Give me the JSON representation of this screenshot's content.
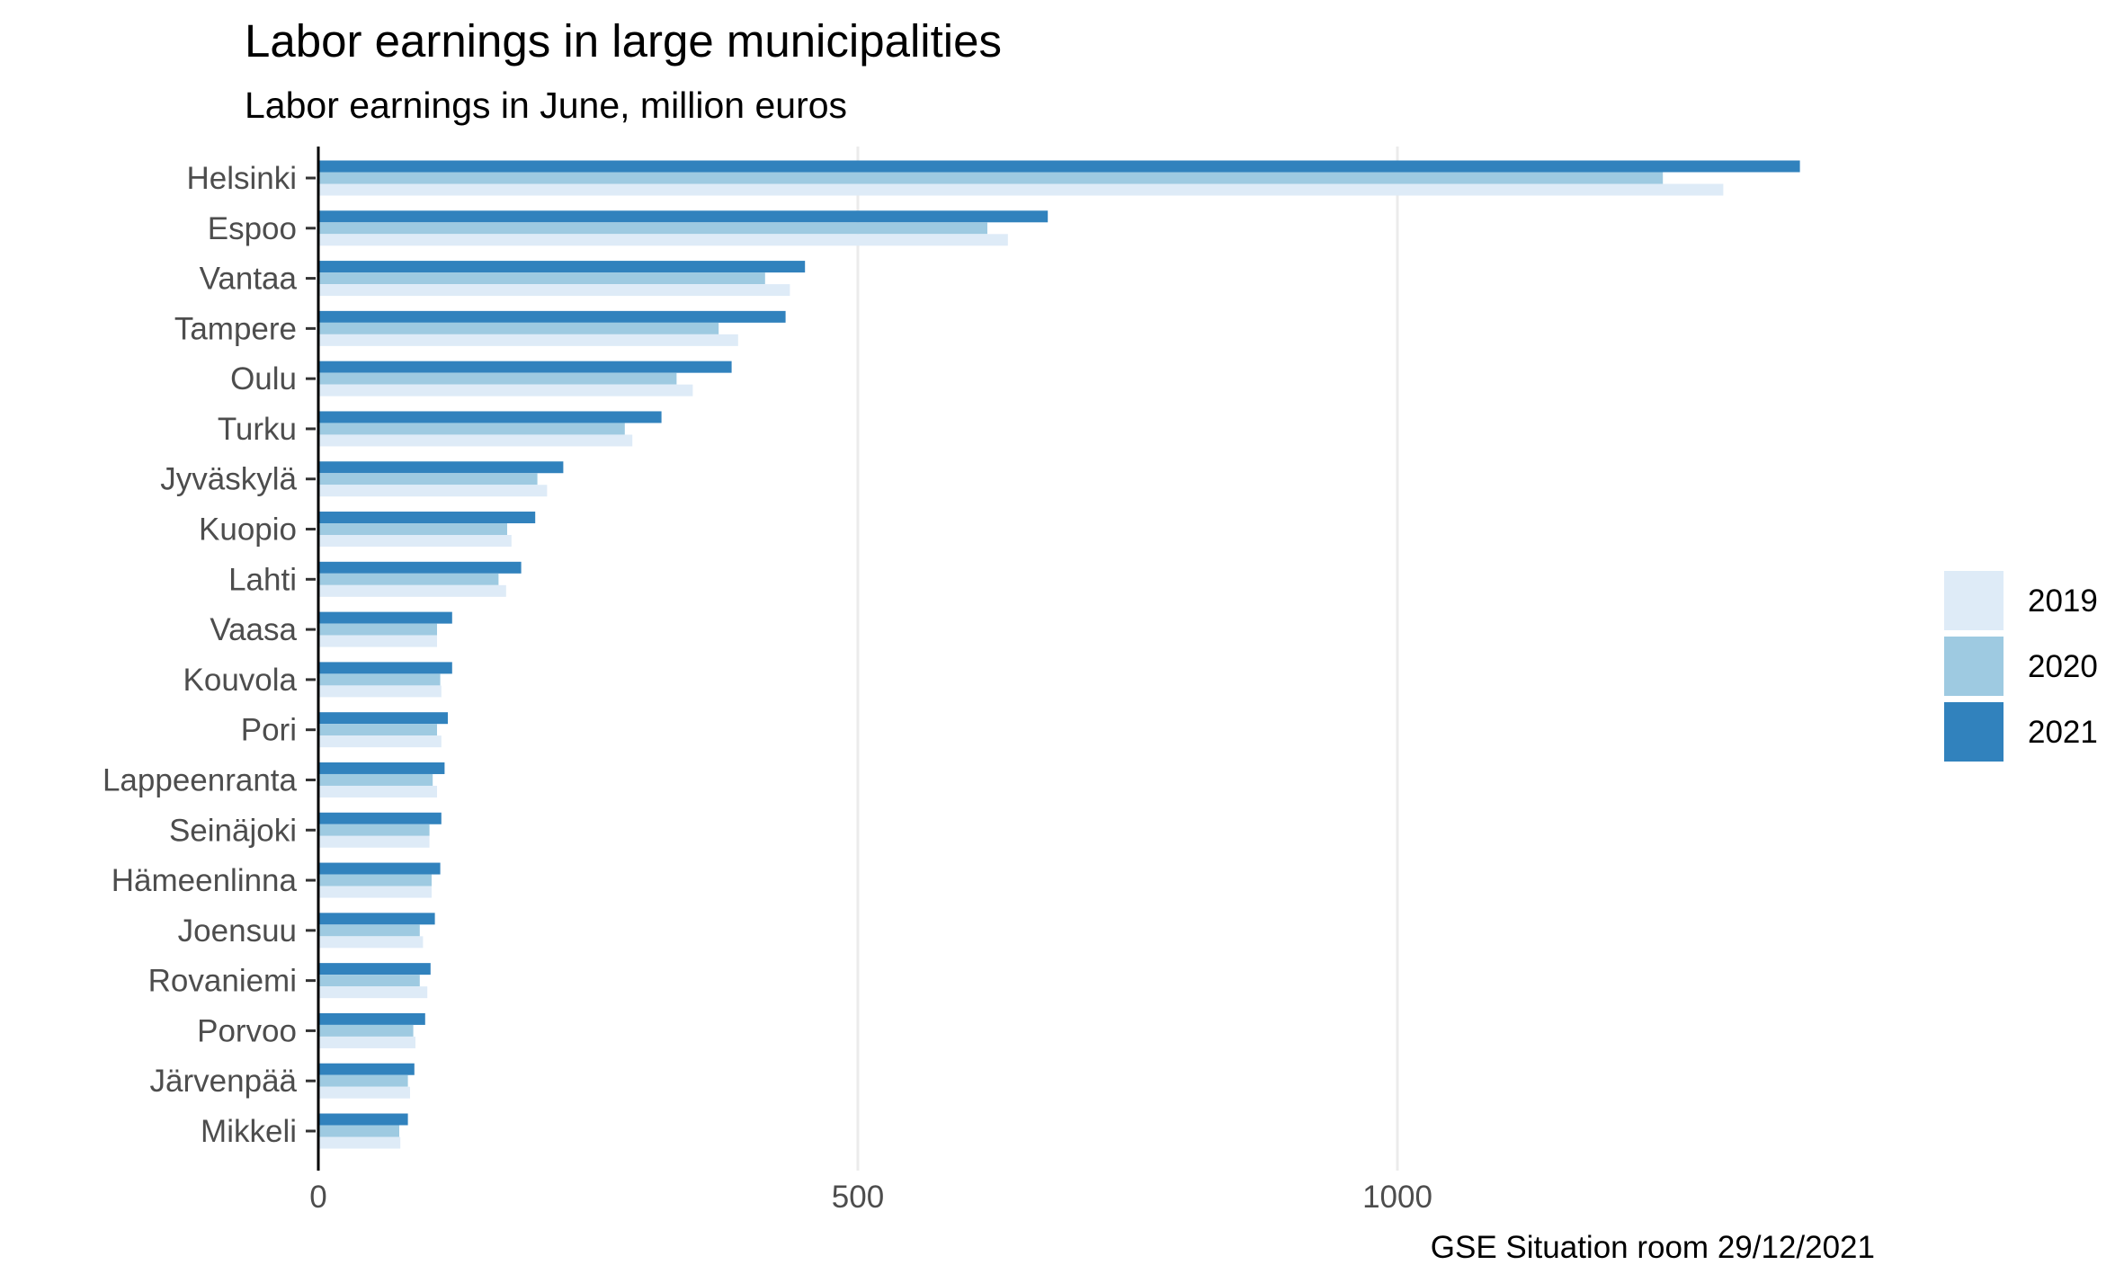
{
  "chart_data": {
    "type": "bar",
    "orientation": "horizontal",
    "title": "Labor earnings in large municipalities",
    "subtitle": "Labor earnings in June, million euros",
    "caption": "GSE Situation room 29/12/2021",
    "xlabel": "",
    "ylabel": "",
    "xlim": [
      0,
      1550
    ],
    "xticks": [
      0,
      500,
      1000
    ],
    "grid": "vertical major",
    "legend_position": "right",
    "categories": [
      "Helsinki",
      "Espoo",
      "Vantaa",
      "Tampere",
      "Oulu",
      "Turku",
      "Jyväskylä",
      "Kuopio",
      "Lahti",
      "Vaasa",
      "Kouvola",
      "Pori",
      "Lappeenranta",
      "Seinäjoki",
      "Hämeenlinna",
      "Joensuu",
      "Rovaniemi",
      "Porvoo",
      "Järvenpää",
      "Mikkeli"
    ],
    "series": [
      {
        "name": "2019",
        "color": "#deebf7",
        "values": [
          1302,
          639,
          437,
          389,
          347,
          291,
          212,
          179,
          174,
          110,
          114,
          114,
          110,
          103,
          105,
          97,
          101,
          90,
          85,
          76
        ]
      },
      {
        "name": "2020",
        "color": "#9ecae1",
        "values": [
          1246,
          620,
          414,
          371,
          332,
          284,
          203,
          175,
          167,
          110,
          113,
          110,
          106,
          103,
          105,
          94,
          94,
          88,
          83,
          75
        ]
      },
      {
        "name": "2021",
        "color": "#3182bd",
        "values": [
          1373,
          676,
          451,
          433,
          383,
          318,
          227,
          201,
          188,
          124,
          124,
          120,
          117,
          114,
          113,
          108,
          104,
          99,
          89,
          83
        ]
      }
    ]
  }
}
